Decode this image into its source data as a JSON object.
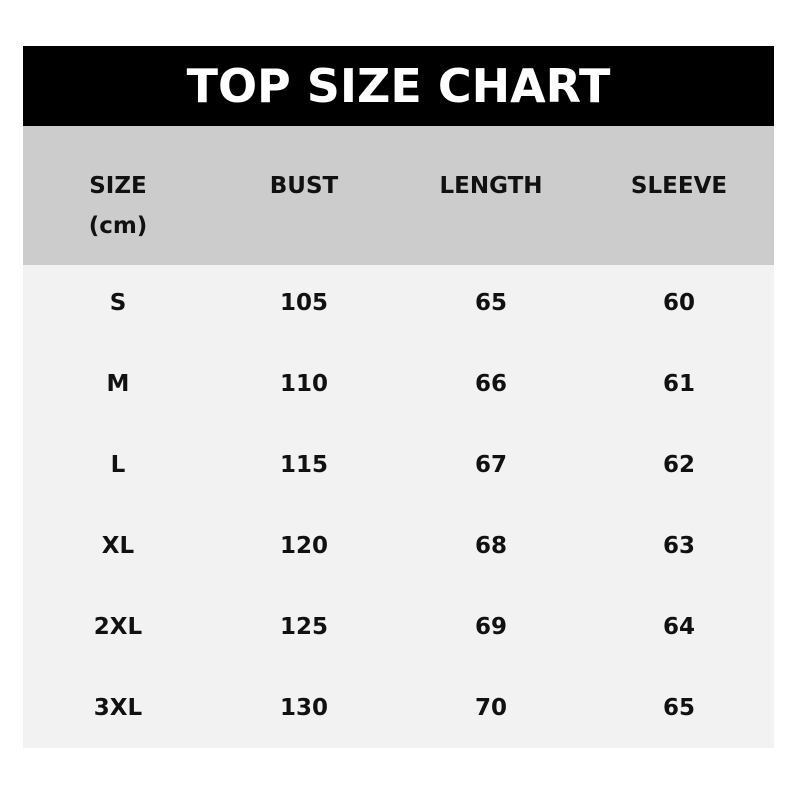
{
  "title": "TOP SIZE CHART",
  "columns": [
    "SIZE",
    "BUST",
    "LENGTH",
    "SLEEVE"
  ],
  "size_unit": "(cm)",
  "rows": [
    [
      "S",
      "105",
      "65",
      "60"
    ],
    [
      "M",
      "110",
      "66",
      "61"
    ],
    [
      "L",
      "115",
      "67",
      "62"
    ],
    [
      "XL",
      "120",
      "68",
      "63"
    ],
    [
      "2XL",
      "125",
      "69",
      "64"
    ],
    [
      "3XL",
      "130",
      "70",
      "65"
    ]
  ],
  "colors": {
    "title_bg": "#000000",
    "header_bg": "#cccccc",
    "body_bg": "#f2f2f2"
  }
}
